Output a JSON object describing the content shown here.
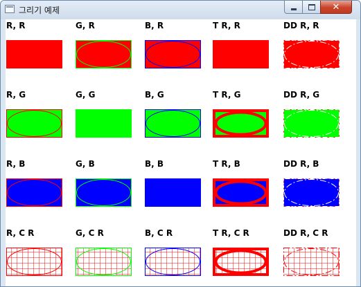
{
  "window": {
    "title": "그리기 예제",
    "icon": "app-window-icon",
    "controls": {
      "minimize_icon": "minimize-icon",
      "maximize_icon": "maximize-icon",
      "close_glyph": "✕"
    }
  },
  "colors": {
    "R": "#ff0000",
    "G": "#00ff00",
    "B": "#0000ff"
  },
  "rows": [
    {
      "fill": "R",
      "cells": [
        {
          "label": "R, R",
          "pen": "solid",
          "outline": "R"
        },
        {
          "label": "G, R",
          "pen": "solid",
          "outline": "G"
        },
        {
          "label": "B, R",
          "pen": "solid",
          "outline": "B"
        },
        {
          "label": "T R, R",
          "pen": "thick",
          "outline": "R"
        },
        {
          "label": "DD R, R",
          "pen": "dashdot",
          "outline": "R"
        }
      ]
    },
    {
      "fill": "G",
      "cells": [
        {
          "label": "R, G",
          "pen": "solid",
          "outline": "R"
        },
        {
          "label": "G, G",
          "pen": "solid",
          "outline": "G"
        },
        {
          "label": "B, G",
          "pen": "solid",
          "outline": "B"
        },
        {
          "label": "T R, G",
          "pen": "thick",
          "outline": "R"
        },
        {
          "label": "DD R, G",
          "pen": "dashdot",
          "outline": "R"
        }
      ]
    },
    {
      "fill": "B",
      "cells": [
        {
          "label": "R, B",
          "pen": "solid",
          "outline": "R"
        },
        {
          "label": "G, B",
          "pen": "solid",
          "outline": "G"
        },
        {
          "label": "B, B",
          "pen": "solid",
          "outline": "B"
        },
        {
          "label": "T R, B",
          "pen": "thick",
          "outline": "R"
        },
        {
          "label": "DD R, B",
          "pen": "dashdot",
          "outline": "R"
        }
      ]
    },
    {
      "fill": "CR",
      "cells": [
        {
          "label": "R, C R",
          "pen": "solid",
          "outline": "R"
        },
        {
          "label": "G, C R",
          "pen": "solid",
          "outline": "G"
        },
        {
          "label": "B, C R",
          "pen": "solid",
          "outline": "B"
        },
        {
          "label": "T R, C R",
          "pen": "thick",
          "outline": "R"
        },
        {
          "label": "DD R, C R",
          "pen": "dashdot",
          "outline": "R"
        }
      ]
    }
  ]
}
